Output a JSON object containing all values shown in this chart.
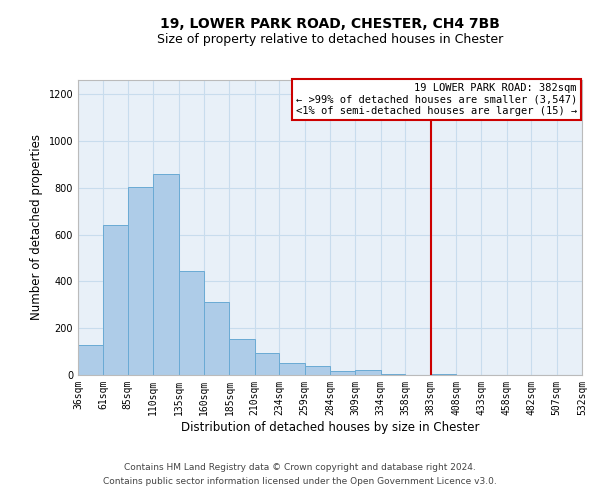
{
  "title": "19, LOWER PARK ROAD, CHESTER, CH4 7BB",
  "subtitle": "Size of property relative to detached houses in Chester",
  "xlabel": "Distribution of detached houses by size in Chester",
  "ylabel": "Number of detached properties",
  "bar_color": "#aecce8",
  "bar_edge_color": "#6aaad4",
  "grid_color": "#c8dced",
  "background_color": "#e8f0f8",
  "bin_edges": [
    36,
    61,
    85,
    110,
    135,
    160,
    185,
    210,
    234,
    259,
    284,
    309,
    334,
    358,
    383,
    408,
    433,
    458,
    482,
    507,
    532
  ],
  "bin_labels": [
    "36sqm",
    "61sqm",
    "85sqm",
    "110sqm",
    "135sqm",
    "160sqm",
    "185sqm",
    "210sqm",
    "234sqm",
    "259sqm",
    "284sqm",
    "309sqm",
    "334sqm",
    "358sqm",
    "383sqm",
    "408sqm",
    "433sqm",
    "458sqm",
    "482sqm",
    "507sqm",
    "532sqm"
  ],
  "bar_heights": [
    130,
    640,
    805,
    860,
    445,
    310,
    155,
    95,
    50,
    40,
    15,
    20,
    5,
    0,
    5,
    0,
    0,
    0,
    0,
    0
  ],
  "vline_x": 383,
  "vline_color": "#cc0000",
  "ylim": [
    0,
    1260
  ],
  "yticks": [
    0,
    200,
    400,
    600,
    800,
    1000,
    1200
  ],
  "legend_text_line1": "19 LOWER PARK ROAD: 382sqm",
  "legend_text_line2": "← >99% of detached houses are smaller (3,547)",
  "legend_text_line3": "<1% of semi-detached houses are larger (15) →",
  "legend_box_color": "#cc0000",
  "footnote_line1": "Contains HM Land Registry data © Crown copyright and database right 2024.",
  "footnote_line2": "Contains public sector information licensed under the Open Government Licence v3.0.",
  "title_fontsize": 10,
  "subtitle_fontsize": 9,
  "axis_label_fontsize": 8.5,
  "tick_fontsize": 7,
  "legend_fontsize": 7.5,
  "footnote_fontsize": 6.5
}
